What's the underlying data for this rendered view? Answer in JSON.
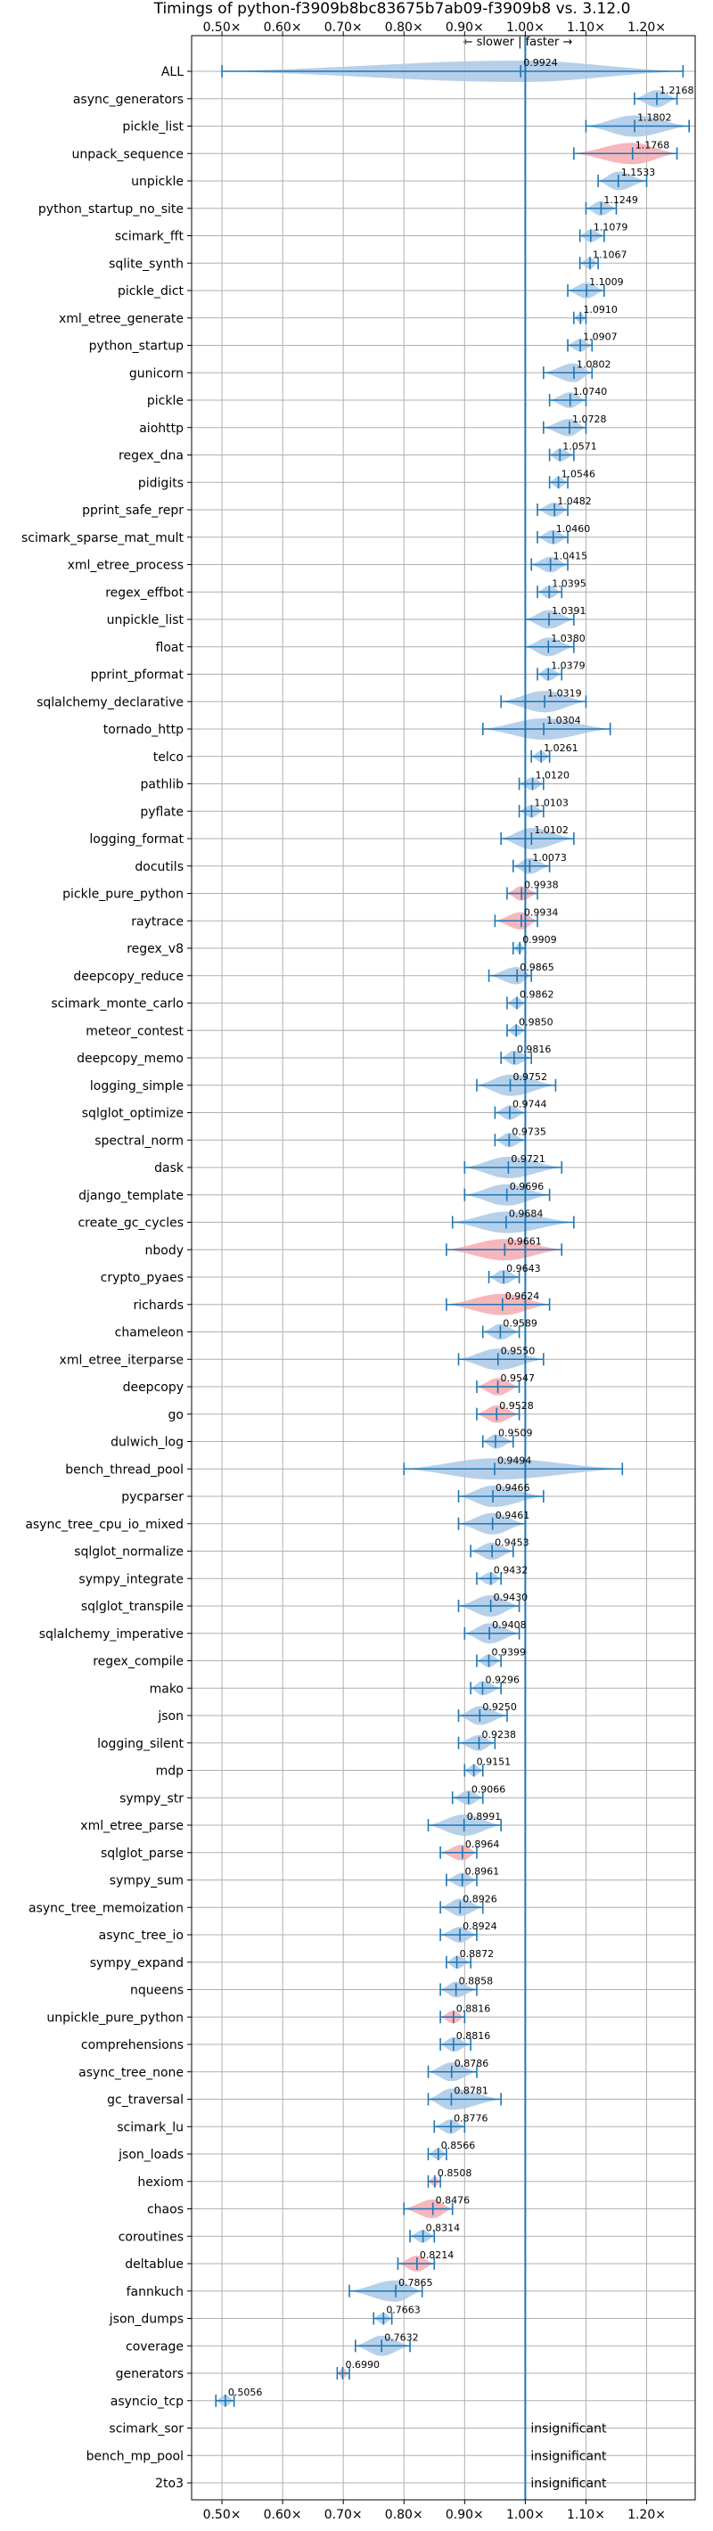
{
  "chart_data": {
    "type": "violin",
    "title": "Timings of python-f3909b8bc83675b7ab09-f3909b8 vs. 3.12.0",
    "direction_label": "← slower | faster →",
    "xlim": [
      0.45,
      1.28
    ],
    "xticks": [
      0.5,
      0.6,
      0.7,
      0.8,
      0.9,
      1.0,
      1.1,
      1.2
    ],
    "xtick_labels": [
      "0.50×",
      "0.60×",
      "0.70×",
      "0.80×",
      "0.90×",
      "1.00×",
      "1.10×",
      "1.20×"
    ],
    "reference_line": 1.0,
    "colors": {
      "faster": "#aac8e6",
      "slower": "#f4aab0",
      "line": "#1f77b4",
      "grid": "#b0b0b0"
    },
    "benchmarks": [
      {
        "name": "ALL",
        "median": 0.9924,
        "label": "0.9924",
        "min": 0.5,
        "max": 1.26,
        "sig": true,
        "color": "blue"
      },
      {
        "name": "async_generators",
        "median": 1.2168,
        "label": "1.2168",
        "min": 1.18,
        "max": 1.25,
        "sig": true,
        "color": "blue"
      },
      {
        "name": "pickle_list",
        "median": 1.1802,
        "label": "1.1802",
        "min": 1.1,
        "max": 1.27,
        "sig": true,
        "color": "blue"
      },
      {
        "name": "unpack_sequence",
        "median": 1.1768,
        "label": "1.1768",
        "min": 1.08,
        "max": 1.25,
        "sig": true,
        "color": "red"
      },
      {
        "name": "unpickle",
        "median": 1.1533,
        "label": "1.1533",
        "min": 1.12,
        "max": 1.2,
        "sig": true,
        "color": "blue"
      },
      {
        "name": "python_startup_no_site",
        "median": 1.1249,
        "label": "1.1249",
        "min": 1.1,
        "max": 1.15,
        "sig": true,
        "color": "blue"
      },
      {
        "name": "scimark_fft",
        "median": 1.1079,
        "label": "1.1079",
        "min": 1.09,
        "max": 1.13,
        "sig": true,
        "color": "blue"
      },
      {
        "name": "sqlite_synth",
        "median": 1.1067,
        "label": "1.1067",
        "min": 1.09,
        "max": 1.12,
        "sig": true,
        "color": "blue"
      },
      {
        "name": "pickle_dict",
        "median": 1.1009,
        "label": "1.1009",
        "min": 1.07,
        "max": 1.13,
        "sig": true,
        "color": "blue"
      },
      {
        "name": "xml_etree_generate",
        "median": 1.091,
        "label": "1.0910",
        "min": 1.08,
        "max": 1.1,
        "sig": true,
        "color": "blue"
      },
      {
        "name": "python_startup",
        "median": 1.0907,
        "label": "1.0907",
        "min": 1.07,
        "max": 1.11,
        "sig": true,
        "color": "blue"
      },
      {
        "name": "gunicorn",
        "median": 1.0802,
        "label": "1.0802",
        "min": 1.03,
        "max": 1.11,
        "sig": true,
        "color": "blue"
      },
      {
        "name": "pickle",
        "median": 1.074,
        "label": "1.0740",
        "min": 1.04,
        "max": 1.1,
        "sig": true,
        "color": "blue"
      },
      {
        "name": "aiohttp",
        "median": 1.0728,
        "label": "1.0728",
        "min": 1.03,
        "max": 1.1,
        "sig": true,
        "color": "blue"
      },
      {
        "name": "regex_dna",
        "median": 1.0571,
        "label": "1.0571",
        "min": 1.04,
        "max": 1.08,
        "sig": true,
        "color": "blue"
      },
      {
        "name": "pidigits",
        "median": 1.0546,
        "label": "1.0546",
        "min": 1.04,
        "max": 1.07,
        "sig": true,
        "color": "blue"
      },
      {
        "name": "pprint_safe_repr",
        "median": 1.0482,
        "label": "1.0482",
        "min": 1.02,
        "max": 1.07,
        "sig": true,
        "color": "blue"
      },
      {
        "name": "scimark_sparse_mat_mult",
        "median": 1.046,
        "label": "1.0460",
        "min": 1.02,
        "max": 1.07,
        "sig": true,
        "color": "blue"
      },
      {
        "name": "xml_etree_process",
        "median": 1.0415,
        "label": "1.0415",
        "min": 1.01,
        "max": 1.07,
        "sig": true,
        "color": "blue"
      },
      {
        "name": "regex_effbot",
        "median": 1.0395,
        "label": "1.0395",
        "min": 1.02,
        "max": 1.06,
        "sig": true,
        "color": "blue"
      },
      {
        "name": "unpickle_list",
        "median": 1.0391,
        "label": "1.0391",
        "min": 1.0,
        "max": 1.08,
        "sig": true,
        "color": "blue"
      },
      {
        "name": "float",
        "median": 1.038,
        "label": "1.0380",
        "min": 1.0,
        "max": 1.08,
        "sig": true,
        "color": "blue"
      },
      {
        "name": "pprint_pformat",
        "median": 1.0379,
        "label": "1.0379",
        "min": 1.02,
        "max": 1.06,
        "sig": true,
        "color": "blue"
      },
      {
        "name": "sqlalchemy_declarative",
        "median": 1.0319,
        "label": "1.0319",
        "min": 0.96,
        "max": 1.1,
        "sig": true,
        "color": "blue"
      },
      {
        "name": "tornado_http",
        "median": 1.0304,
        "label": "1.0304",
        "min": 0.93,
        "max": 1.14,
        "sig": true,
        "color": "blue"
      },
      {
        "name": "telco",
        "median": 1.0261,
        "label": "1.0261",
        "min": 1.01,
        "max": 1.04,
        "sig": true,
        "color": "blue"
      },
      {
        "name": "pathlib",
        "median": 1.012,
        "label": "1.0120",
        "min": 0.99,
        "max": 1.03,
        "sig": true,
        "color": "blue"
      },
      {
        "name": "pyflate",
        "median": 1.0103,
        "label": "1.0103",
        "min": 0.99,
        "max": 1.03,
        "sig": true,
        "color": "blue"
      },
      {
        "name": "logging_format",
        "median": 1.0102,
        "label": "1.0102",
        "min": 0.96,
        "max": 1.08,
        "sig": true,
        "color": "blue"
      },
      {
        "name": "docutils",
        "median": 1.0073,
        "label": "1.0073",
        "min": 0.98,
        "max": 1.04,
        "sig": true,
        "color": "blue"
      },
      {
        "name": "pickle_pure_python",
        "median": 0.9938,
        "label": "0.9938",
        "min": 0.97,
        "max": 1.02,
        "sig": true,
        "color": "red"
      },
      {
        "name": "raytrace",
        "median": 0.9934,
        "label": "0.9934",
        "min": 0.95,
        "max": 1.02,
        "sig": true,
        "color": "red"
      },
      {
        "name": "regex_v8",
        "median": 0.9909,
        "label": "0.9909",
        "min": 0.98,
        "max": 1.0,
        "sig": true,
        "color": "blue"
      },
      {
        "name": "deepcopy_reduce",
        "median": 0.9865,
        "label": "0.9865",
        "min": 0.94,
        "max": 1.01,
        "sig": true,
        "color": "blue"
      },
      {
        "name": "scimark_monte_carlo",
        "median": 0.9862,
        "label": "0.9862",
        "min": 0.97,
        "max": 1.0,
        "sig": true,
        "color": "blue"
      },
      {
        "name": "meteor_contest",
        "median": 0.985,
        "label": "0.9850",
        "min": 0.97,
        "max": 1.0,
        "sig": true,
        "color": "blue"
      },
      {
        "name": "deepcopy_memo",
        "median": 0.9816,
        "label": "0.9816",
        "min": 0.96,
        "max": 1.01,
        "sig": true,
        "color": "blue"
      },
      {
        "name": "logging_simple",
        "median": 0.9752,
        "label": "0.9752",
        "min": 0.92,
        "max": 1.05,
        "sig": true,
        "color": "blue"
      },
      {
        "name": "sqlglot_optimize",
        "median": 0.9744,
        "label": "0.9744",
        "min": 0.95,
        "max": 1.0,
        "sig": true,
        "color": "blue"
      },
      {
        "name": "spectral_norm",
        "median": 0.9735,
        "label": "0.9735",
        "min": 0.95,
        "max": 1.0,
        "sig": true,
        "color": "blue"
      },
      {
        "name": "dask",
        "median": 0.9721,
        "label": "0.9721",
        "min": 0.9,
        "max": 1.06,
        "sig": true,
        "color": "blue"
      },
      {
        "name": "django_template",
        "median": 0.9696,
        "label": "0.9696",
        "min": 0.9,
        "max": 1.04,
        "sig": true,
        "color": "blue"
      },
      {
        "name": "create_gc_cycles",
        "median": 0.9684,
        "label": "0.9684",
        "min": 0.88,
        "max": 1.08,
        "sig": true,
        "color": "blue"
      },
      {
        "name": "nbody",
        "median": 0.9661,
        "label": "0.9661",
        "min": 0.87,
        "max": 1.06,
        "sig": true,
        "color": "red"
      },
      {
        "name": "crypto_pyaes",
        "median": 0.9643,
        "label": "0.9643",
        "min": 0.94,
        "max": 0.99,
        "sig": true,
        "color": "blue"
      },
      {
        "name": "richards",
        "median": 0.9624,
        "label": "0.9624",
        "min": 0.87,
        "max": 1.04,
        "sig": true,
        "color": "red"
      },
      {
        "name": "chameleon",
        "median": 0.9589,
        "label": "0.9589",
        "min": 0.93,
        "max": 0.99,
        "sig": true,
        "color": "blue"
      },
      {
        "name": "xml_etree_iterparse",
        "median": 0.955,
        "label": "0.9550",
        "min": 0.89,
        "max": 1.03,
        "sig": true,
        "color": "blue"
      },
      {
        "name": "deepcopy",
        "median": 0.9547,
        "label": "0.9547",
        "min": 0.92,
        "max": 0.99,
        "sig": true,
        "color": "red"
      },
      {
        "name": "go",
        "median": 0.9528,
        "label": "0.9528",
        "min": 0.92,
        "max": 0.99,
        "sig": true,
        "color": "red"
      },
      {
        "name": "dulwich_log",
        "median": 0.9509,
        "label": "0.9509",
        "min": 0.93,
        "max": 0.98,
        "sig": true,
        "color": "blue"
      },
      {
        "name": "bench_thread_pool",
        "median": 0.9494,
        "label": "0.9494",
        "min": 0.8,
        "max": 1.16,
        "sig": true,
        "color": "blue"
      },
      {
        "name": "pycparser",
        "median": 0.9466,
        "label": "0.9466",
        "min": 0.89,
        "max": 1.03,
        "sig": true,
        "color": "blue"
      },
      {
        "name": "async_tree_cpu_io_mixed",
        "median": 0.9461,
        "label": "0.9461",
        "min": 0.89,
        "max": 1.0,
        "sig": true,
        "color": "blue"
      },
      {
        "name": "sqlglot_normalize",
        "median": 0.9453,
        "label": "0.9453",
        "min": 0.91,
        "max": 0.98,
        "sig": true,
        "color": "blue"
      },
      {
        "name": "sympy_integrate",
        "median": 0.9432,
        "label": "0.9432",
        "min": 0.92,
        "max": 0.96,
        "sig": true,
        "color": "blue"
      },
      {
        "name": "sqlglot_transpile",
        "median": 0.943,
        "label": "0.9430",
        "min": 0.89,
        "max": 0.99,
        "sig": true,
        "color": "blue"
      },
      {
        "name": "sqlalchemy_imperative",
        "median": 0.9408,
        "label": "0.9408",
        "min": 0.9,
        "max": 0.99,
        "sig": true,
        "color": "blue"
      },
      {
        "name": "regex_compile",
        "median": 0.9399,
        "label": "0.9399",
        "min": 0.92,
        "max": 0.96,
        "sig": true,
        "color": "blue"
      },
      {
        "name": "mako",
        "median": 0.9296,
        "label": "0.9296",
        "min": 0.91,
        "max": 0.96,
        "sig": true,
        "color": "blue"
      },
      {
        "name": "json",
        "median": 0.925,
        "label": "0.9250",
        "min": 0.89,
        "max": 0.97,
        "sig": true,
        "color": "blue"
      },
      {
        "name": "logging_silent",
        "median": 0.9238,
        "label": "0.9238",
        "min": 0.89,
        "max": 0.95,
        "sig": true,
        "color": "blue"
      },
      {
        "name": "mdp",
        "median": 0.9151,
        "label": "0.9151",
        "min": 0.9,
        "max": 0.93,
        "sig": true,
        "color": "blue"
      },
      {
        "name": "sympy_str",
        "median": 0.9066,
        "label": "0.9066",
        "min": 0.88,
        "max": 0.93,
        "sig": true,
        "color": "blue"
      },
      {
        "name": "xml_etree_parse",
        "median": 0.8991,
        "label": "0.8991",
        "min": 0.84,
        "max": 0.96,
        "sig": true,
        "color": "blue"
      },
      {
        "name": "sqlglot_parse",
        "median": 0.8964,
        "label": "0.8964",
        "min": 0.86,
        "max": 0.92,
        "sig": true,
        "color": "red"
      },
      {
        "name": "sympy_sum",
        "median": 0.8961,
        "label": "0.8961",
        "min": 0.87,
        "max": 0.92,
        "sig": true,
        "color": "blue"
      },
      {
        "name": "async_tree_memoization",
        "median": 0.8926,
        "label": "0.8926",
        "min": 0.86,
        "max": 0.93,
        "sig": true,
        "color": "blue"
      },
      {
        "name": "async_tree_io",
        "median": 0.8924,
        "label": "0.8924",
        "min": 0.86,
        "max": 0.92,
        "sig": true,
        "color": "blue"
      },
      {
        "name": "sympy_expand",
        "median": 0.8872,
        "label": "0.8872",
        "min": 0.87,
        "max": 0.91,
        "sig": true,
        "color": "blue"
      },
      {
        "name": "nqueens",
        "median": 0.8858,
        "label": "0.8858",
        "min": 0.86,
        "max": 0.92,
        "sig": true,
        "color": "blue"
      },
      {
        "name": "unpickle_pure_python",
        "median": 0.8816,
        "label": "0.8816",
        "min": 0.86,
        "max": 0.9,
        "sig": true,
        "color": "red"
      },
      {
        "name": "comprehensions",
        "median": 0.8816,
        "label": "0.8816",
        "min": 0.86,
        "max": 0.91,
        "sig": true,
        "color": "blue"
      },
      {
        "name": "async_tree_none",
        "median": 0.8786,
        "label": "0.8786",
        "min": 0.84,
        "max": 0.92,
        "sig": true,
        "color": "blue"
      },
      {
        "name": "gc_traversal",
        "median": 0.8781,
        "label": "0.8781",
        "min": 0.84,
        "max": 0.96,
        "sig": true,
        "color": "blue"
      },
      {
        "name": "scimark_lu",
        "median": 0.8776,
        "label": "0.8776",
        "min": 0.85,
        "max": 0.9,
        "sig": true,
        "color": "blue"
      },
      {
        "name": "json_loads",
        "median": 0.8566,
        "label": "0.8566",
        "min": 0.84,
        "max": 0.87,
        "sig": true,
        "color": "blue"
      },
      {
        "name": "hexiom",
        "median": 0.8508,
        "label": "0.8508",
        "min": 0.84,
        "max": 0.86,
        "sig": true,
        "color": "red"
      },
      {
        "name": "chaos",
        "median": 0.8476,
        "label": "0.8476",
        "min": 0.8,
        "max": 0.88,
        "sig": true,
        "color": "red"
      },
      {
        "name": "coroutines",
        "median": 0.8314,
        "label": "0.8314",
        "min": 0.81,
        "max": 0.85,
        "sig": true,
        "color": "blue"
      },
      {
        "name": "deltablue",
        "median": 0.8214,
        "label": "0.8214",
        "min": 0.79,
        "max": 0.85,
        "sig": true,
        "color": "red"
      },
      {
        "name": "fannkuch",
        "median": 0.7865,
        "label": "0.7865",
        "min": 0.71,
        "max": 0.83,
        "sig": true,
        "color": "blue"
      },
      {
        "name": "json_dumps",
        "median": 0.7663,
        "label": "0.7663",
        "min": 0.75,
        "max": 0.78,
        "sig": true,
        "color": "blue"
      },
      {
        "name": "coverage",
        "median": 0.7632,
        "label": "0.7632",
        "min": 0.72,
        "max": 0.81,
        "sig": true,
        "color": "blue"
      },
      {
        "name": "generators",
        "median": 0.699,
        "label": "0.6990",
        "min": 0.69,
        "max": 0.71,
        "sig": true,
        "color": "red"
      },
      {
        "name": "asyncio_tcp",
        "median": 0.5056,
        "label": "0.5056",
        "min": 0.49,
        "max": 0.52,
        "sig": true,
        "color": "blue"
      },
      {
        "name": "scimark_sor",
        "sig": false,
        "label": "insignificant"
      },
      {
        "name": "bench_mp_pool",
        "sig": false,
        "label": "insignificant"
      },
      {
        "name": "2to3",
        "sig": false,
        "label": "insignificant"
      }
    ]
  }
}
